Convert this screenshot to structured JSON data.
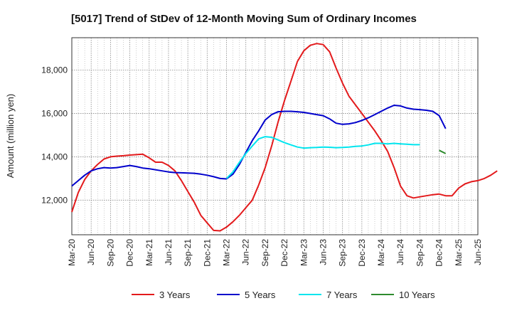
{
  "chart_data": {
    "type": "line",
    "title": "[5017]  Trend of StDev of 12-Month Moving Sum of Ordinary Incomes",
    "xlabel": "",
    "ylabel": "Amount (million yen)",
    "x_ticks": [
      "Mar-20",
      "Jun-20",
      "Sep-20",
      "Dec-20",
      "Mar-21",
      "Jun-21",
      "Sep-21",
      "Dec-21",
      "Mar-22",
      "Jun-22",
      "Sep-22",
      "Dec-22",
      "Mar-23",
      "Jun-23",
      "Sep-23",
      "Dec-23",
      "Mar-24",
      "Jun-24",
      "Sep-24",
      "Dec-24",
      "Mar-25",
      "Jun-25"
    ],
    "y_ticks": [
      12000,
      14000,
      16000,
      18000
    ],
    "y_tick_labels": [
      "12,000",
      "14,000",
      "16,000",
      "18,000"
    ],
    "ylim": [
      10400,
      19500
    ],
    "x_range_months": [
      0,
      63
    ],
    "grid": true,
    "legend_position": "bottom",
    "series": [
      {
        "name": "3 Years",
        "color": "#e31a1c",
        "start_month": 0,
        "values": [
          11450,
          12350,
          12950,
          13350,
          13650,
          13900,
          14000,
          14030,
          14050,
          14080,
          14100,
          14120,
          13950,
          13750,
          13750,
          13600,
          13350,
          12900,
          12400,
          11900,
          11300,
          10950,
          10600,
          10580,
          10750,
          11000,
          11300,
          11650,
          12000,
          12700,
          13500,
          14500,
          15600,
          16600,
          17500,
          18400,
          18900,
          19150,
          19230,
          19180,
          18850,
          18100,
          17400,
          16800,
          16400,
          16000,
          15600,
          15200,
          14750,
          14250,
          13500,
          12650,
          12200,
          12100,
          12150,
          12200,
          12250,
          12280,
          12200,
          12200,
          12550,
          12750,
          12850,
          12900,
          13000,
          13150,
          13350
        ]
      },
      {
        "name": "5 Years",
        "color": "#0000cc",
        "start_month": 0,
        "values": [
          12650,
          12900,
          13150,
          13350,
          13450,
          13500,
          13480,
          13500,
          13550,
          13600,
          13550,
          13480,
          13450,
          13400,
          13350,
          13300,
          13270,
          13260,
          13250,
          13240,
          13200,
          13150,
          13080,
          13000,
          12980,
          13200,
          13650,
          14200,
          14750,
          15200,
          15700,
          15950,
          16080,
          16100,
          16100,
          16080,
          16050,
          16000,
          15950,
          15900,
          15750,
          15550,
          15500,
          15520,
          15580,
          15680,
          15800,
          15950,
          16100,
          16250,
          16380,
          16350,
          16250,
          16200,
          16180,
          16150,
          16100,
          15900,
          15300
        ]
      },
      {
        "name": "7 Years",
        "color": "#00e5ee",
        "start_month": 24,
        "values": [
          13000,
          13300,
          13750,
          14150,
          14500,
          14830,
          14930,
          14900,
          14780,
          14650,
          14550,
          14450,
          14400,
          14420,
          14430,
          14450,
          14440,
          14420,
          14430,
          14450,
          14480,
          14500,
          14550,
          14620,
          14620,
          14600,
          14620,
          14600,
          14580,
          14560,
          14560
        ]
      },
      {
        "name": "10 Years",
        "color": "#2e8b2e",
        "start_month": 57,
        "values": [
          14300,
          14150
        ]
      }
    ]
  }
}
